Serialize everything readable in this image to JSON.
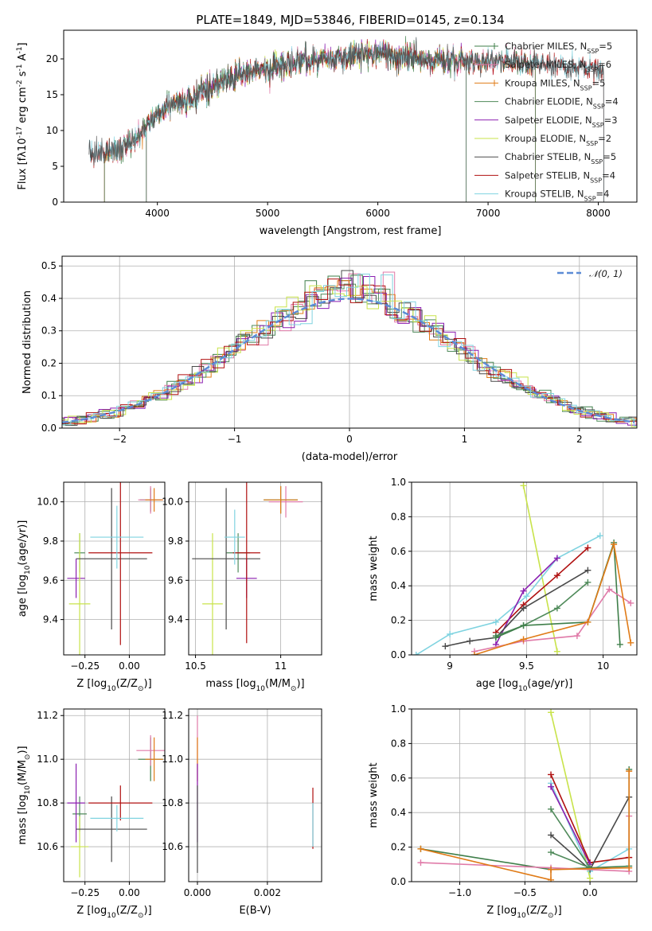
{
  "figure": {
    "title": "PLATE=1849, MJD=53846, FIBERID=0145, z=0.134"
  },
  "model_colors": {
    "Chabrier MILES": "#3f7f4a",
    "Salpeter MILES": "#e07aa8",
    "Kroupa MILES": "#e07b17",
    "Chabrier ELODIE": "#4f8a5a",
    "Salpeter ELODIE": "#8b1fb0",
    "Kroupa ELODIE": "#c8e34a",
    "Chabrier STELIB": "#4a4a4a",
    "Salpeter STELIB": "#b01010",
    "Kroupa STELIB": "#7fd3e0",
    "gaussian": "#5b8bd6"
  },
  "chart_data": [
    {
      "id": "spectrum",
      "type": "line",
      "xlabel": "wavelength [Angstrom, rest frame]",
      "ylabel": "Flux [f$\\lambda$10$^{-17}$ erg cm$^{-2}$ s$^{-1}$ A$^{-1}$]",
      "xlim": [
        3150,
        8350
      ],
      "ylim": [
        0,
        24
      ],
      "xticks": [
        4000,
        5000,
        6000,
        7000,
        8000
      ],
      "yticks": [
        0,
        5,
        10,
        15,
        20
      ],
      "grid": false,
      "legend_placement": "right",
      "legend": [
        {
          "model": "Chabrier MILES",
          "label": "Chabrier MILES, N",
          "sub": "SSP",
          "suffix": "=5"
        },
        {
          "model": "Salpeter MILES",
          "label": "Salpeter MILES, N",
          "sub": "SSP",
          "suffix": "=6"
        },
        {
          "model": "Kroupa MILES",
          "label": "Kroupa MILES, N",
          "sub": "SSP",
          "suffix": "=5"
        },
        {
          "model": "Chabrier ELODIE",
          "label": "Chabrier ELODIE, N",
          "sub": "SSP",
          "suffix": "=4"
        },
        {
          "model": "Salpeter ELODIE",
          "label": "Salpeter ELODIE, N",
          "sub": "SSP",
          "suffix": "=3"
        },
        {
          "model": "Kroupa ELODIE",
          "label": "Kroupa ELODIE, N",
          "sub": "SSP",
          "suffix": "=2"
        },
        {
          "model": "Chabrier STELIB",
          "label": "Chabrier STELIB, N",
          "sub": "SSP",
          "suffix": "=5"
        },
        {
          "model": "Salpeter STELIB",
          "label": "Salpeter STELIB, N",
          "sub": "SSP",
          "suffix": "=4"
        },
        {
          "model": "Kroupa STELIB",
          "label": "Kroupa STELIB, N",
          "sub": "SSP",
          "suffix": "=4"
        }
      ],
      "continuum": [
        [
          3380,
          7.0
        ],
        [
          3500,
          6.6
        ],
        [
          3650,
          7.4
        ],
        [
          3800,
          8.8
        ],
        [
          3950,
          11.5
        ],
        [
          4100,
          13.5
        ],
        [
          4300,
          14.6
        ],
        [
          4500,
          16.0
        ],
        [
          4700,
          17.6
        ],
        [
          4900,
          18.5
        ],
        [
          5200,
          19.2
        ],
        [
          5500,
          20.0
        ],
        [
          5800,
          20.6
        ],
        [
          6000,
          20.9
        ],
        [
          6300,
          20.1
        ],
        [
          6600,
          19.8
        ],
        [
          6900,
          19.6
        ],
        [
          7200,
          19.7
        ],
        [
          7500,
          19.3
        ],
        [
          7800,
          18.9
        ],
        [
          8000,
          18.7
        ],
        [
          8100,
          18.6
        ]
      ],
      "data_range": [
        3380,
        8100
      ],
      "noise_amplitude": 1.3,
      "model_ranges": {
        "Kroupa ELODIE": [
          3900,
          6800
        ],
        "Salpeter MILES": [
          3520,
          7430
        ],
        "Kroupa MILES": [
          3520,
          7430
        ],
        "Chabrier MILES": [
          3520,
          7430
        ],
        "Chabrier ELODIE": [
          3900,
          6800
        ],
        "Salpeter ELODIE": [
          3900,
          6800
        ],
        "Chabrier STELIB": [
          3380,
          8050
        ],
        "Salpeter STELIB": [
          3380,
          8050
        ],
        "Kroupa STELIB": [
          3380,
          8050
        ]
      }
    },
    {
      "id": "residuals",
      "type": "step-histogram",
      "xlabel": "(data-model)/error",
      "ylabel": "Normed distribution",
      "xlim": [
        -2.5,
        2.5
      ],
      "ylim": [
        0,
        0.53
      ],
      "xticks": [
        -2,
        -1,
        0,
        1,
        2
      ],
      "yticks": [
        0.0,
        0.1,
        0.2,
        0.3,
        0.4,
        0.5
      ],
      "grid": true,
      "legend_placement": "top-right",
      "legend": [
        {
          "label": "$\\mathcal{N}(0, 1)$",
          "style": "dashed",
          "color_key": "gaussian"
        }
      ],
      "gaussian": {
        "mean": 0,
        "sigma": 1,
        "peak": 0.399
      },
      "bin_width": 0.1
    },
    {
      "id": "age_vs_Z",
      "type": "errorbar",
      "xlabel": "Z [log$_{10}$(Z/Z$_\\odot$)]",
      "ylabel": "age  [log$_{10}$(age/yr)]",
      "xlim": [
        -0.37,
        0.2
      ],
      "ylim": [
        9.22,
        10.1
      ],
      "xticks": [
        -0.25,
        0.0
      ],
      "xticklabels": [
        "−0.25",
        "0.00"
      ],
      "yticks": [
        9.4,
        9.6,
        9.8,
        10.0
      ],
      "grid": true,
      "points": [
        {
          "model": "Chabrier MILES",
          "x": 0.12,
          "y": 10.01,
          "xerr": 0.06,
          "yerr": 0.06
        },
        {
          "model": "Salpeter MILES",
          "x": 0.12,
          "y": 10.01,
          "xerr": 0.07,
          "yerr": 0.07
        },
        {
          "model": "Kroupa MILES",
          "x": 0.14,
          "y": 10.01,
          "xerr": 0.05,
          "yerr": 0.06
        },
        {
          "model": "Chabrier ELODIE",
          "x": -0.28,
          "y": 9.74,
          "xerr": 0.03,
          "yerr": 0.1
        },
        {
          "model": "Salpeter ELODIE",
          "x": -0.3,
          "y": 9.61,
          "xerr": 0.05,
          "yerr": 0.1
        },
        {
          "model": "Kroupa ELODIE",
          "x": -0.28,
          "y": 9.48,
          "xerr": 0.06,
          "yerr": 0.36
        },
        {
          "model": "Chabrier STELIB",
          "x": -0.1,
          "y": 9.71,
          "xerr": 0.2,
          "yerr": 0.36
        },
        {
          "model": "Salpeter STELIB",
          "x": -0.05,
          "y": 9.74,
          "xerr": 0.18,
          "yerr": 0.47
        },
        {
          "model": "Kroupa STELIB",
          "x": -0.07,
          "y": 9.82,
          "xerr": 0.15,
          "yerr": 0.16
        }
      ]
    },
    {
      "id": "age_vs_mass",
      "type": "errorbar",
      "xlabel": "mass [log$_{10}$(M/M$_\\odot$)]",
      "ylabel": "",
      "xlim": [
        10.46,
        11.24
      ],
      "ylim": [
        9.22,
        10.1
      ],
      "xticks": [
        10.5,
        11.0
      ],
      "yticks": [
        9.4,
        9.6,
        9.8,
        10.0
      ],
      "grid": true,
      "points": [
        {
          "model": "Chabrier MILES",
          "x": 11.0,
          "y": 10.01,
          "xerr": 0.1,
          "yerr": 0.07
        },
        {
          "model": "Salpeter MILES",
          "x": 11.03,
          "y": 10.0,
          "xerr": 0.1,
          "yerr": 0.08
        },
        {
          "model": "Kroupa MILES",
          "x": 11.0,
          "y": 10.01,
          "xerr": 0.1,
          "yerr": 0.07
        },
        {
          "model": "Chabrier ELODIE",
          "x": 10.75,
          "y": 9.74,
          "xerr": 0.07,
          "yerr": 0.1
        },
        {
          "model": "Salpeter ELODIE",
          "x": 10.8,
          "y": 9.61,
          "xerr": 0.06,
          "yerr": 0.1
        },
        {
          "model": "Kroupa ELODIE",
          "x": 10.6,
          "y": 9.48,
          "xerr": 0.06,
          "yerr": 0.36
        },
        {
          "model": "Chabrier STELIB",
          "x": 10.68,
          "y": 9.71,
          "xerr": 0.2,
          "yerr": 0.36
        },
        {
          "model": "Salpeter STELIB",
          "x": 10.8,
          "y": 9.74,
          "xerr": 0.08,
          "yerr": 0.46
        },
        {
          "model": "Kroupa STELIB",
          "x": 10.73,
          "y": 9.82,
          "xerr": 0.06,
          "yerr": 0.14
        }
      ]
    },
    {
      "id": "mass_weight_vs_age",
      "type": "line",
      "xlabel": "age  [log$_{10}$(age/yr)]",
      "ylabel": "mass weight",
      "xlim": [
        8.75,
        10.22
      ],
      "ylim": [
        0,
        1.0
      ],
      "xticks": [
        9.0,
        9.5,
        10.0
      ],
      "yticks": [
        0.0,
        0.2,
        0.4,
        0.6,
        0.8,
        1.0
      ],
      "grid": true,
      "series": [
        {
          "model": "Kroupa ELODIE",
          "points": [
            [
              9.48,
              0.98
            ],
            [
              9.7,
              0.02
            ]
          ]
        },
        {
          "model": "Kroupa STELIB",
          "points": [
            [
              8.78,
              0.0
            ],
            [
              9.0,
              0.12
            ],
            [
              9.3,
              0.19
            ],
            [
              9.5,
              0.34
            ],
            [
              9.7,
              0.56
            ],
            [
              9.98,
              0.69
            ]
          ]
        },
        {
          "model": "Salpeter STELIB",
          "points": [
            [
              9.3,
              0.13
            ],
            [
              9.48,
              0.29
            ],
            [
              9.7,
              0.46
            ],
            [
              9.9,
              0.62
            ]
          ]
        },
        {
          "model": "Salpeter ELODIE",
          "points": [
            [
              9.3,
              0.06
            ],
            [
              9.48,
              0.37
            ],
            [
              9.7,
              0.56
            ]
          ]
        },
        {
          "model": "Chabrier STELIB",
          "points": [
            [
              8.97,
              0.05
            ],
            [
              9.13,
              0.08
            ],
            [
              9.3,
              0.1
            ],
            [
              9.48,
              0.27
            ],
            [
              9.9,
              0.49
            ]
          ]
        },
        {
          "model": "Chabrier ELODIE",
          "points": [
            [
              9.3,
              0.11
            ],
            [
              9.48,
              0.17
            ],
            [
              9.7,
              0.27
            ],
            [
              9.9,
              0.42
            ]
          ]
        },
        {
          "model": "Chabrier MILES",
          "points": [
            [
              9.3,
              0.1
            ],
            [
              9.48,
              0.17
            ],
            [
              9.9,
              0.19
            ],
            [
              10.07,
              0.65
            ],
            [
              10.11,
              0.06
            ]
          ]
        },
        {
          "model": "Salpeter MILES",
          "points": [
            [
              9.16,
              0.02
            ],
            [
              9.48,
              0.08
            ],
            [
              9.83,
              0.11
            ],
            [
              10.04,
              0.38
            ],
            [
              10.18,
              0.3
            ]
          ]
        },
        {
          "model": "Kroupa MILES",
          "points": [
            [
              9.16,
              0.0
            ],
            [
              9.48,
              0.09
            ],
            [
              9.9,
              0.19
            ],
            [
              10.07,
              0.64
            ],
            [
              10.18,
              0.07
            ]
          ]
        }
      ]
    },
    {
      "id": "mass_vs_Z",
      "type": "errorbar",
      "xlabel": "Z [log$_{10}$(Z/Z$_\\odot$)]",
      "ylabel": "mass [log$_{10}$(M/M$_\\odot$)]",
      "xlim": [
        -0.37,
        0.2
      ],
      "ylim": [
        10.44,
        11.23
      ],
      "xticks": [
        -0.25,
        0.0
      ],
      "xticklabels": [
        "−0.25",
        "0.00"
      ],
      "yticks": [
        10.6,
        10.8,
        11.0,
        11.2
      ],
      "grid": true,
      "points": [
        {
          "model": "Chabrier MILES",
          "x": 0.12,
          "y": 11.0,
          "xerr": 0.07,
          "yerr": 0.1
        },
        {
          "model": "Salpeter MILES",
          "x": 0.12,
          "y": 11.04,
          "xerr": 0.08,
          "yerr": 0.07
        },
        {
          "model": "Kroupa MILES",
          "x": 0.14,
          "y": 11.0,
          "xerr": 0.05,
          "yerr": 0.1
        },
        {
          "model": "Chabrier ELODIE",
          "x": -0.28,
          "y": 10.75,
          "xerr": 0.04,
          "yerr": 0.08
        },
        {
          "model": "Salpeter ELODIE",
          "x": -0.3,
          "y": 10.8,
          "xerr": 0.05,
          "yerr": 0.18
        },
        {
          "model": "Kroupa ELODIE",
          "x": -0.28,
          "y": 10.6,
          "xerr": 0.05,
          "yerr": 0.14
        },
        {
          "model": "Chabrier STELIB",
          "x": -0.1,
          "y": 10.68,
          "xerr": 0.2,
          "yerr": 0.15
        },
        {
          "model": "Salpeter STELIB",
          "x": -0.05,
          "y": 10.8,
          "xerr": 0.18,
          "yerr": 0.08
        },
        {
          "model": "Kroupa STELIB",
          "x": -0.07,
          "y": 10.73,
          "xerr": 0.15,
          "yerr": 0.06
        }
      ]
    },
    {
      "id": "mass_vs_ebv",
      "type": "errorbar",
      "xlabel": "E(B-V)",
      "ylabel": "",
      "xlim": [
        -0.00025,
        0.00355
      ],
      "ylim": [
        10.44,
        11.23
      ],
      "xticks": [
        0.0,
        0.002
      ],
      "xticklabels": [
        "0.000",
        "0.002"
      ],
      "yticks": [
        10.6,
        10.8,
        11.0,
        11.2
      ],
      "grid": true,
      "points": [
        {
          "model": "Salpeter MILES",
          "x": 0.0,
          "y": 11.04,
          "xerr": 0.0,
          "yerr": 0.16
        },
        {
          "model": "Kroupa MILES",
          "x": 0.0,
          "y": 11.0,
          "xerr": 0.0,
          "yerr": 0.1
        },
        {
          "model": "Salpeter ELODIE",
          "x": 0.0,
          "y": 10.8,
          "xerr": 0.0,
          "yerr": 0.18
        },
        {
          "model": "Chabrier STELIB",
          "x": 0.0,
          "y": 10.68,
          "xerr": 0.0,
          "yerr": 0.2
        },
        {
          "model": "Salpeter STELIB",
          "x": 0.0033,
          "y": 10.73,
          "xerr": 0.0,
          "yerr": 0.14
        },
        {
          "model": "Kroupa STELIB",
          "x": 0.0033,
          "y": 10.7,
          "xerr": 0.0,
          "yerr": 0.1
        }
      ]
    },
    {
      "id": "mass_weight_vs_Z",
      "type": "line",
      "xlabel": "Z [log$_{10}$(Z/Z$_\\odot$)]",
      "ylabel": "mass weight",
      "xlim": [
        -1.37,
        0.36
      ],
      "ylim": [
        0,
        1.0
      ],
      "xticks": [
        -1.0,
        -0.5,
        0.0
      ],
      "xticklabels": [
        "−1.0",
        "−0.5",
        "0.0"
      ],
      "yticks": [
        0.0,
        0.2,
        0.4,
        0.6,
        0.8,
        1.0
      ],
      "grid": true,
      "series": [
        {
          "model": "Kroupa ELODIE",
          "points": [
            [
              -0.3,
              0.98
            ],
            [
              0.0,
              0.02
            ]
          ]
        },
        {
          "model": "Kroupa STELIB",
          "points": [
            [
              -0.3,
              0.57
            ],
            [
              0.0,
              0.06
            ],
            [
              0.3,
              0.19
            ]
          ]
        },
        {
          "model": "Salpeter STELIB",
          "points": [
            [
              -0.3,
              0.62
            ],
            [
              0.0,
              0.11
            ],
            [
              0.3,
              0.14
            ]
          ]
        },
        {
          "model": "Salpeter ELODIE",
          "points": [
            [
              -0.3,
              0.55
            ],
            [
              0.0,
              0.1
            ]
          ]
        },
        {
          "model": "Chabrier STELIB",
          "points": [
            [
              -0.3,
              0.27
            ],
            [
              0.0,
              0.07
            ],
            [
              0.3,
              0.49
            ]
          ]
        },
        {
          "model": "Chabrier ELODIE",
          "points": [
            [
              -0.3,
              0.42
            ],
            [
              0.0,
              0.08
            ],
            [
              -0.3,
              0.17
            ]
          ]
        },
        {
          "model": "Chabrier MILES",
          "points": [
            [
              -1.3,
              0.19
            ],
            [
              -0.3,
              0.07
            ],
            [
              0.3,
              0.09
            ],
            [
              0.3,
              0.65
            ]
          ]
        },
        {
          "model": "Salpeter MILES",
          "points": [
            [
              -1.3,
              0.11
            ],
            [
              -0.3,
              0.08
            ],
            [
              0.3,
              0.06
            ],
            [
              0.3,
              0.38
            ]
          ]
        },
        {
          "model": "Kroupa MILES",
          "points": [
            [
              -1.3,
              0.19
            ],
            [
              -0.3,
              0.01
            ],
            [
              -0.3,
              0.07
            ],
            [
              0.3,
              0.08
            ],
            [
              0.3,
              0.64
            ]
          ]
        }
      ]
    }
  ]
}
